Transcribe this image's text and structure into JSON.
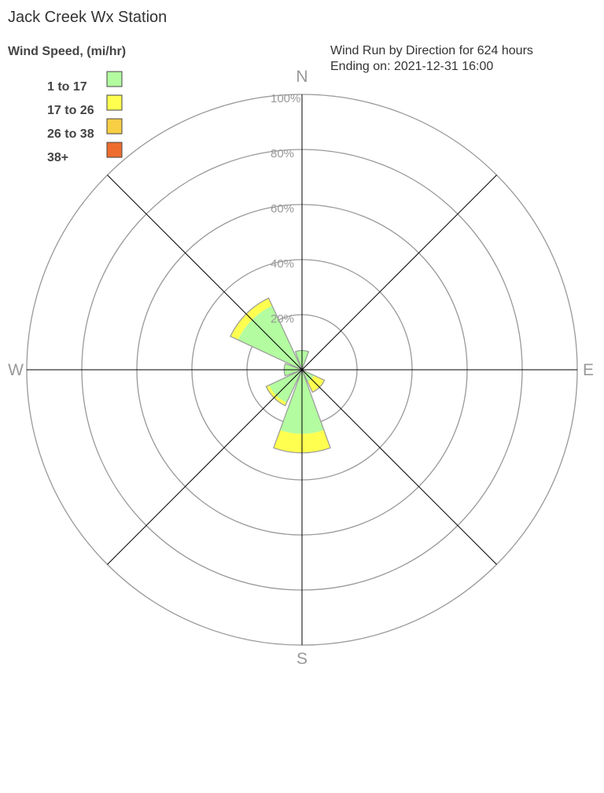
{
  "chart_data": {
    "type": "wind-rose",
    "title": "Jack Creek Wx Station",
    "subtitle_lines": [
      "Wind Run by Direction for 624 hours",
      "Ending on: 2021-12-31 16:00"
    ],
    "legend_title": "Wind Speed, (mi/hr)",
    "legend_placement": "top-left",
    "speed_bins": [
      {
        "label": "1 to 17",
        "color": "#b3fca0"
      },
      {
        "label": "17 to 26",
        "color": "#ffff50"
      },
      {
        "label": "26 to 38",
        "color": "#f7cf45"
      },
      {
        "label": "38+",
        "color": "#ee6d2e"
      }
    ],
    "directions": [
      "N",
      "NE",
      "E",
      "SE",
      "S",
      "SW",
      "W",
      "NW"
    ],
    "compass_labels": [
      "N",
      "E",
      "S",
      "W"
    ],
    "radial_ticks": [
      "20%",
      "40%",
      "60%",
      "80%",
      "100%"
    ],
    "radial_max": 100,
    "grid": true,
    "values_percent": [
      [
        7.0,
        0,
        0,
        0
      ],
      [
        0,
        0,
        0,
        0
      ],
      [
        0,
        0,
        0,
        0
      ],
      [
        4.8,
        4.2,
        0,
        0
      ],
      [
        23.3,
        6.9,
        0,
        0
      ],
      [
        13.2,
        1.2,
        0,
        0
      ],
      [
        6.5,
        0,
        0,
        0
      ],
      [
        25.7,
        3.0,
        0,
        0
      ]
    ]
  }
}
